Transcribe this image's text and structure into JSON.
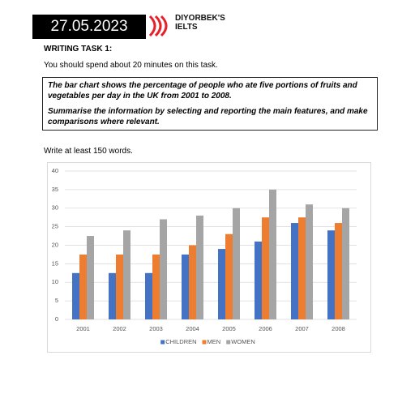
{
  "header": {
    "date": "27.05.2023",
    "brand_lines": [
      "DIYORBEK'S",
      "IELTS"
    ]
  },
  "task": {
    "heading": "WRITING TASK 1:",
    "time_note": "You should spend about 20 minutes on this task.",
    "prompt_paragraphs": [
      "The bar chart shows the percentage of people who ate five portions of fruits and vegetables per day in the UK from 2001 to 2008.",
      "Summarise the information by selecting and reporting the main features, and make comparisons where relevant."
    ],
    "word_count": "Write at least 150 words."
  },
  "chart_data": {
    "type": "bar",
    "categories": [
      "2001",
      "2002",
      "2003",
      "2004",
      "2005",
      "2006",
      "2007",
      "2008"
    ],
    "series": [
      {
        "name": "CHILDREN",
        "color": "#4472c4",
        "values": [
          12.5,
          12.5,
          12.5,
          17.5,
          19,
          21,
          26,
          24
        ]
      },
      {
        "name": "MEN",
        "color": "#ed7d31",
        "values": [
          17.5,
          17.5,
          17.5,
          20,
          23,
          27.5,
          27.5,
          26
        ]
      },
      {
        "name": "WOMEN",
        "color": "#a5a5a5",
        "values": [
          22.5,
          24,
          27,
          28,
          30,
          35,
          31,
          30
        ]
      }
    ],
    "ylim": [
      0,
      40
    ],
    "yticks": [
      0,
      5,
      10,
      15,
      20,
      25,
      30,
      35,
      40
    ],
    "grid": true,
    "legend": "bottom"
  }
}
